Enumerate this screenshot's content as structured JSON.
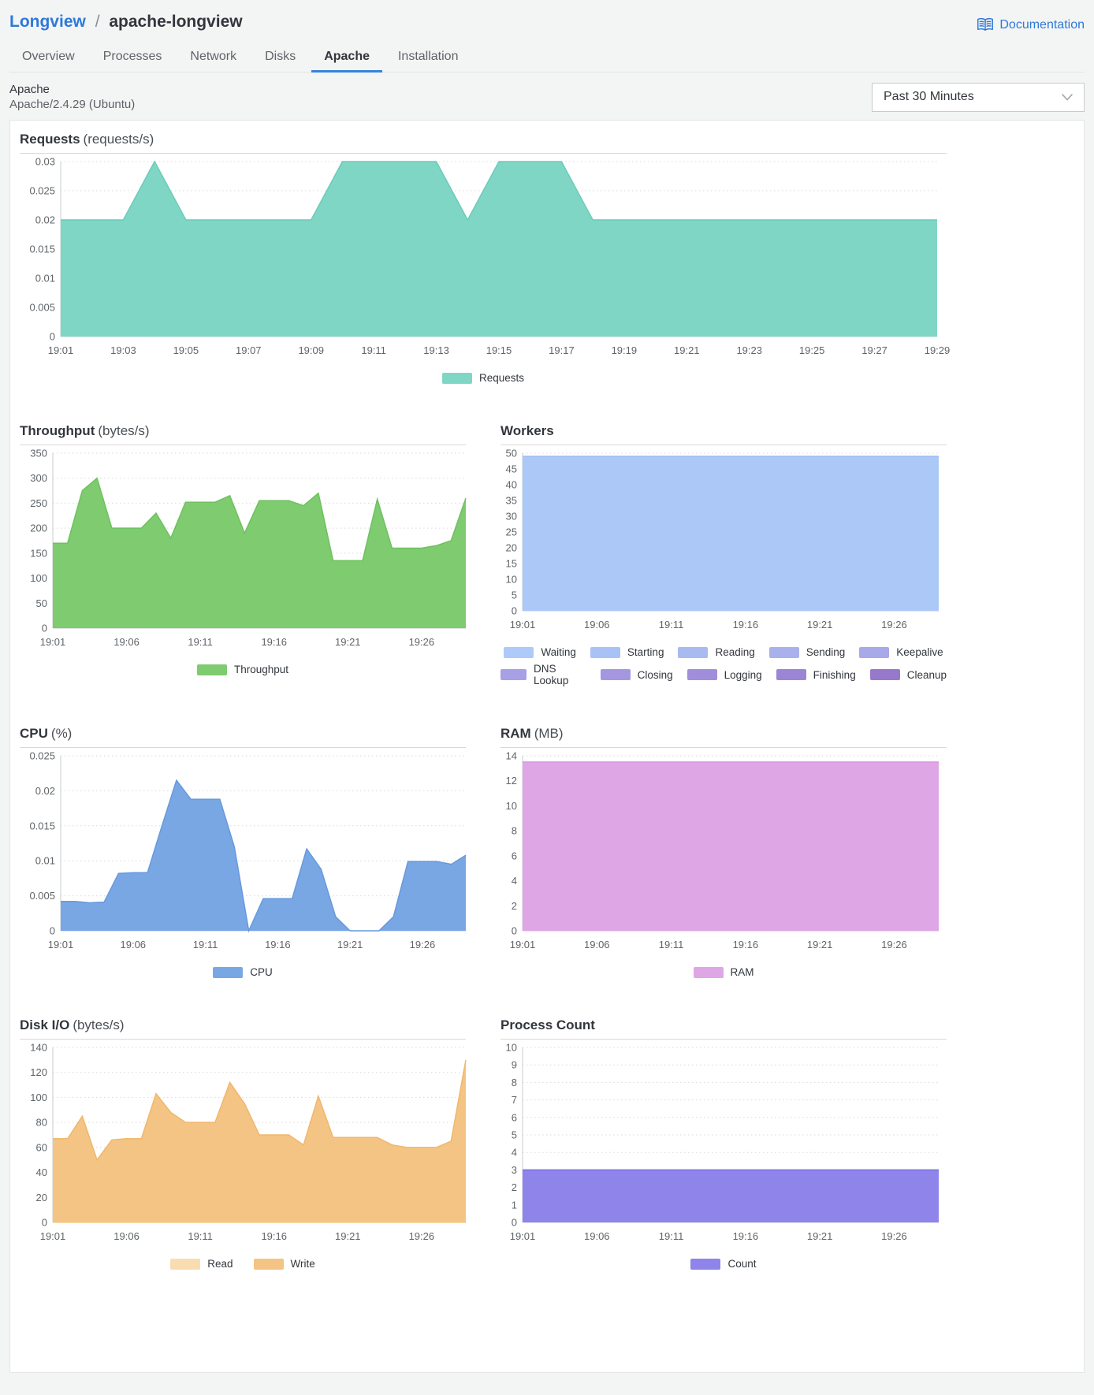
{
  "header": {
    "breadcrumb_parent": "Longview",
    "breadcrumb_separator": "/",
    "breadcrumb_current": "apache-longview",
    "documentation_label": "Documentation"
  },
  "tabs": [
    {
      "label": "Overview",
      "active": false
    },
    {
      "label": "Processes",
      "active": false
    },
    {
      "label": "Network",
      "active": false
    },
    {
      "label": "Disks",
      "active": false
    },
    {
      "label": "Apache",
      "active": true
    },
    {
      "label": "Installation",
      "active": false
    }
  ],
  "info": {
    "title": "Apache",
    "subtitle": "Apache/2.4.29 (Ubuntu)",
    "time_range_selected": "Past 30 Minutes"
  },
  "chart_data": [
    {
      "id": "requests",
      "type": "area",
      "title": "Requests",
      "unit": "(requests/s)",
      "x_start": "19:01",
      "x_end": "19:29",
      "x_step_minutes": 1,
      "x_labels": [
        "19:01",
        "19:03",
        "19:05",
        "19:07",
        "19:09",
        "19:11",
        "19:13",
        "19:15",
        "19:17",
        "19:19",
        "19:21",
        "19:23",
        "19:25",
        "19:27",
        "19:29"
      ],
      "x_tick_indices": [
        0,
        2,
        4,
        6,
        8,
        10,
        12,
        14,
        16,
        18,
        20,
        22,
        24,
        26,
        28
      ],
      "ylim": [
        0,
        0.03
      ],
      "yticks": [
        0,
        0.005,
        0.01,
        0.015,
        0.02,
        0.025,
        0.03
      ],
      "grid": true,
      "legend_position": "bottom",
      "series": [
        {
          "name": "Requests",
          "color": "#7fd6c5",
          "line": "#6cccb8",
          "values": [
            0.02,
            0.02,
            0.02,
            0.03,
            0.02,
            0.02,
            0.02,
            0.02,
            0.02,
            0.03,
            0.03,
            0.03,
            0.03,
            0.02,
            0.03,
            0.03,
            0.03,
            0.02,
            0.02,
            0.02,
            0.02,
            0.02,
            0.02,
            0.02,
            0.02,
            0.02,
            0.02,
            0.02,
            0.02
          ]
        }
      ],
      "legend": [
        {
          "label": "Requests",
          "color": "#7fd6c5"
        }
      ]
    },
    {
      "id": "throughput",
      "type": "area",
      "title": "Throughput",
      "unit": "(bytes/s)",
      "x_start": "19:01",
      "x_end": "19:29",
      "x_step_minutes": 1,
      "x_labels": [
        "19:01",
        "19:06",
        "19:11",
        "19:16",
        "19:21",
        "19:26"
      ],
      "x_tick_indices": [
        0,
        5,
        10,
        15,
        20,
        25
      ],
      "ylim": [
        0,
        350
      ],
      "yticks": [
        0,
        50,
        100,
        150,
        200,
        250,
        300,
        350
      ],
      "grid": true,
      "legend_position": "bottom",
      "series": [
        {
          "name": "Throughput",
          "color": "#7ecb70",
          "line": "#6fc15f",
          "values": [
            170,
            170,
            275,
            300,
            200,
            200,
            200,
            230,
            180,
            252,
            252,
            252,
            265,
            190,
            255,
            255,
            255,
            245,
            270,
            135,
            135,
            135,
            258,
            160,
            160,
            160,
            165,
            175,
            260
          ]
        }
      ],
      "legend": [
        {
          "label": "Throughput",
          "color": "#7ecb70"
        }
      ]
    },
    {
      "id": "workers",
      "type": "area",
      "title": "Workers",
      "unit": "",
      "x_start": "19:01",
      "x_end": "19:29",
      "x_step_minutes": 1,
      "x_labels": [
        "19:01",
        "19:06",
        "19:11",
        "19:16",
        "19:21",
        "19:26"
      ],
      "x_tick_indices": [
        0,
        5,
        10,
        15,
        20,
        25
      ],
      "ylim": [
        0,
        50
      ],
      "yticks": [
        0,
        5,
        10,
        15,
        20,
        25,
        30,
        35,
        40,
        45,
        50
      ],
      "grid": true,
      "legend_position": "bottom",
      "series": [
        {
          "name": "Waiting",
          "color": "#abc8f7",
          "line": "#9bbcf3",
          "values": [
            49,
            49,
            49,
            49,
            49,
            49,
            49,
            49,
            49,
            49,
            49,
            49,
            49,
            49,
            49,
            49,
            49,
            49,
            49,
            49,
            49,
            49,
            49,
            49,
            49,
            49,
            49,
            49,
            49
          ]
        }
      ],
      "legend": [
        {
          "label": "Waiting",
          "color": "#adcaf8"
        },
        {
          "label": "Starting",
          "color": "#a9c2f5"
        },
        {
          "label": "Reading",
          "color": "#a9baf1"
        },
        {
          "label": "Sending",
          "color": "#a9b1ed"
        },
        {
          "label": "Keepalive",
          "color": "#a8a9e9"
        },
        {
          "label": "DNS Lookup",
          "color": "#a7a0e4"
        },
        {
          "label": "Closing",
          "color": "#a497df"
        },
        {
          "label": "Logging",
          "color": "#a08eda"
        },
        {
          "label": "Finishing",
          "color": "#9c85d4"
        },
        {
          "label": "Cleanup",
          "color": "#9779cc"
        }
      ]
    },
    {
      "id": "cpu",
      "type": "area",
      "title": "CPU",
      "unit": "(%)",
      "x_start": "19:01",
      "x_end": "19:29",
      "x_step_minutes": 1,
      "x_labels": [
        "19:01",
        "19:06",
        "19:11",
        "19:16",
        "19:21",
        "19:26"
      ],
      "x_tick_indices": [
        0,
        5,
        10,
        15,
        20,
        25
      ],
      "ylim": [
        0,
        0.025
      ],
      "yticks": [
        0,
        0.005,
        0.01,
        0.015,
        0.02,
        0.025
      ],
      "grid": true,
      "legend_position": "bottom",
      "series": [
        {
          "name": "CPU",
          "color": "#79a7e4",
          "line": "#6699dd",
          "values": [
            0.0042,
            0.0042,
            0.004,
            0.0041,
            0.0082,
            0.0083,
            0.0083,
            0.015,
            0.0215,
            0.0188,
            0.0188,
            0.0188,
            0.012,
            0,
            0.0046,
            0.0046,
            0.0046,
            0.0117,
            0.0088,
            0.002,
            0,
            0,
            0,
            0.002,
            0.0099,
            0.0099,
            0.0099,
            0.0095,
            0.0108
          ]
        }
      ],
      "legend": [
        {
          "label": "CPU",
          "color": "#79a7e4"
        }
      ]
    },
    {
      "id": "ram",
      "type": "area",
      "title": "RAM",
      "unit": "(MB)",
      "x_start": "19:01",
      "x_end": "19:29",
      "x_step_minutes": 1,
      "x_labels": [
        "19:01",
        "19:06",
        "19:11",
        "19:16",
        "19:21",
        "19:26"
      ],
      "x_tick_indices": [
        0,
        5,
        10,
        15,
        20,
        25
      ],
      "ylim": [
        0,
        14
      ],
      "yticks": [
        0,
        2,
        4,
        6,
        8,
        10,
        12,
        14
      ],
      "grid": true,
      "legend_position": "bottom",
      "series": [
        {
          "name": "RAM",
          "color": "#dfa6e6",
          "line": "#d795e0",
          "values": [
            13.5,
            13.5,
            13.5,
            13.5,
            13.5,
            13.5,
            13.5,
            13.5,
            13.5,
            13.5,
            13.5,
            13.5,
            13.5,
            13.5,
            13.5,
            13.5,
            13.5,
            13.5,
            13.5,
            13.5,
            13.5,
            13.5,
            13.5,
            13.5,
            13.5,
            13.5,
            13.5,
            13.5,
            13.5
          ]
        }
      ],
      "legend": [
        {
          "label": "RAM",
          "color": "#dfa6e6"
        }
      ]
    },
    {
      "id": "disk-io",
      "type": "area",
      "title": "Disk I/O",
      "unit": "(bytes/s)",
      "x_start": "19:01",
      "x_end": "19:29",
      "x_step_minutes": 1,
      "x_labels": [
        "19:01",
        "19:06",
        "19:11",
        "19:16",
        "19:21",
        "19:26"
      ],
      "x_tick_indices": [
        0,
        5,
        10,
        15,
        20,
        25
      ],
      "ylim": [
        0,
        140
      ],
      "yticks": [
        0,
        20,
        40,
        60,
        80,
        100,
        120,
        140
      ],
      "grid": true,
      "legend_position": "bottom",
      "series": [
        {
          "name": "Read",
          "color": "#f9ddb0",
          "line": "#f6d29a",
          "values": [
            0,
            0,
            0,
            0,
            0,
            0,
            0,
            0,
            0,
            0,
            0,
            0,
            0,
            0,
            0,
            0,
            0,
            0,
            0,
            0,
            0,
            0,
            0,
            0,
            0,
            0,
            0,
            0,
            0
          ]
        },
        {
          "name": "Write",
          "color": "#f4c484",
          "line": "#f0b76c",
          "values": [
            67,
            67,
            85,
            50,
            66,
            67,
            67,
            103,
            88,
            80,
            80,
            80,
            112,
            95,
            70,
            70,
            70,
            62,
            101,
            68,
            68,
            68,
            68,
            62,
            60,
            60,
            60,
            65,
            130
          ]
        }
      ],
      "legend": [
        {
          "label": "Read",
          "color": "#f9ddb0"
        },
        {
          "label": "Write",
          "color": "#f4c484"
        }
      ]
    },
    {
      "id": "process-count",
      "type": "area",
      "title": "Process Count",
      "unit": "",
      "x_start": "19:01",
      "x_end": "19:29",
      "x_step_minutes": 1,
      "x_labels": [
        "19:01",
        "19:06",
        "19:11",
        "19:16",
        "19:21",
        "19:26"
      ],
      "x_tick_indices": [
        0,
        5,
        10,
        15,
        20,
        25
      ],
      "ylim": [
        0,
        10
      ],
      "yticks": [
        0,
        1,
        2,
        3,
        4,
        5,
        6,
        7,
        8,
        9,
        10
      ],
      "grid": true,
      "legend_position": "bottom",
      "series": [
        {
          "name": "Count",
          "color": "#8e84ea",
          "line": "#7a6fe2",
          "values": [
            3,
            3,
            3,
            3,
            3,
            3,
            3,
            3,
            3,
            3,
            3,
            3,
            3,
            3,
            3,
            3,
            3,
            3,
            3,
            3,
            3,
            3,
            3,
            3,
            3,
            3,
            3,
            3,
            3
          ]
        }
      ],
      "legend": [
        {
          "label": "Count",
          "color": "#8e84ea"
        }
      ]
    }
  ]
}
